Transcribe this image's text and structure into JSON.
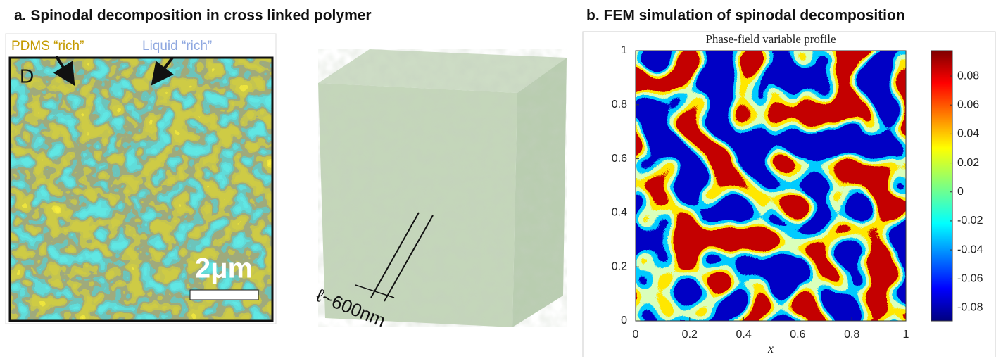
{
  "panel_a": {
    "title": "a. Spinodal decomposition in cross linked polymer",
    "label_pdms": "PDMS “rich”",
    "label_liquid": "Liquid “rich”",
    "panel_letter": "D",
    "scale_bar": "2μm",
    "length_label": "ℓ~600nm"
  },
  "panel_b": {
    "title": "b. FEM simulation of spinodal decomposition",
    "plot_title": "Phase-field variable profile",
    "x_label": "x̄",
    "xlim": [
      0,
      1
    ],
    "xticks": [
      0,
      0.2,
      0.4,
      0.6,
      0.8,
      1
    ],
    "ylim": [
      0,
      1
    ],
    "yticks": [
      0,
      0.2,
      0.4,
      0.6,
      0.8,
      1
    ],
    "colorbar": {
      "lim": [
        -0.089,
        0.0975
      ],
      "ticks": [
        -0.08,
        -0.06,
        -0.04,
        -0.02,
        0,
        0.02,
        0.04,
        0.06,
        0.08
      ]
    }
  }
}
